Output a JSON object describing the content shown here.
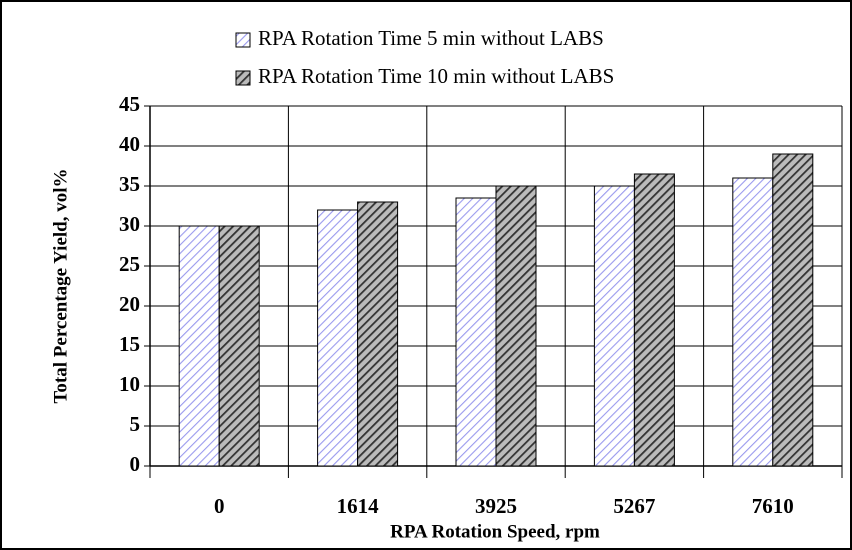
{
  "chart_data": {
    "type": "bar",
    "x_label": "RPA Rotation Speed, rpm",
    "y_label": "Total Percentage Yield, vol%",
    "categories": [
      "0",
      "1614",
      "3925",
      "5267",
      "7610"
    ],
    "series": [
      {
        "name": "RPA Rotation Time 5 min without LABS",
        "color": "#9a9aee",
        "values": [
          30,
          32,
          33.5,
          35,
          36
        ]
      },
      {
        "name": "RPA Rotation Time 10 min without LABS",
        "color": "#333333",
        "values": [
          30,
          33,
          35,
          36.5,
          39
        ]
      }
    ],
    "ylim": [
      0,
      45
    ],
    "yticks": [
      0,
      5,
      10,
      15,
      20,
      25,
      30,
      35,
      40,
      45
    ],
    "grid": true,
    "legend": "top"
  }
}
